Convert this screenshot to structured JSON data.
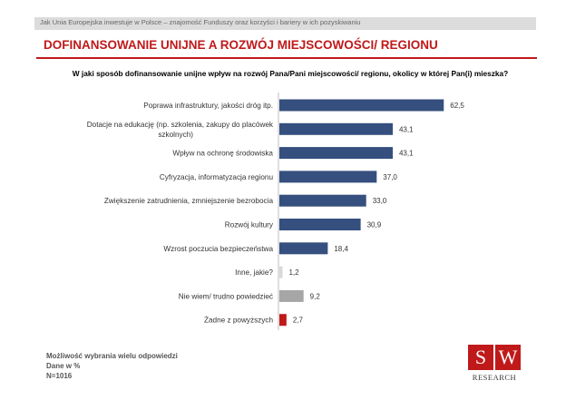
{
  "header": {
    "breadcrumb": "Jak Unia Europejska inwestuje w Polsce – znajomość Funduszy oraz korzyści i bariery w ich pozyskiwaniu",
    "title": "DOFINANSOWANIE UNIJNE A ROZWÓJ MIEJSCOWOŚCI/ REGIONU",
    "question": "W jaki sposób dofinansowanie unijne wpływ na rozwój Pana/Pani miejscowości/ regionu, okolicy w której Pan(i) mieszka?"
  },
  "chart_data": {
    "type": "bar",
    "orientation": "horizontal",
    "categories": [
      [
        "Poprawa infrastruktury, jakości dróg itp."
      ],
      [
        "Dotacje na edukację (np. szkolenia, zakupy do placówek",
        "szkolnych)"
      ],
      [
        "Wpływ na ochronę środowiska"
      ],
      [
        "Cyfryzacja, informatyzacja regionu"
      ],
      [
        "Zwiększenie zatrudnienia, zmniejszenie bezrobocia"
      ],
      [
        "Rozwój kultury"
      ],
      [
        "Wzrost poczucia bezpieczeństwa"
      ],
      [
        "Inne, jakie?"
      ],
      [
        "Nie wiem/ trudno powiedzieć"
      ],
      [
        "Żadne z powyższych"
      ]
    ],
    "values": [
      62.5,
      43.1,
      43.1,
      37.0,
      33.0,
      30.9,
      18.4,
      1.2,
      9.2,
      2.7
    ],
    "value_labels": [
      "62,5",
      "43,1",
      "43,1",
      "37,0",
      "33,0",
      "30,9",
      "18,4",
      "1,2",
      "9,2",
      "2,7"
    ],
    "bar_colors": [
      "#354f7e",
      "#354f7e",
      "#354f7e",
      "#354f7e",
      "#354f7e",
      "#354f7e",
      "#354f7e",
      "#d9d9d9",
      "#a6a6a6",
      "#c0191a"
    ],
    "xlim": [
      0,
      100
    ],
    "axis_color": "#bfbfbf"
  },
  "footer": {
    "note": "Możliwość wybrania wielu odpowiedzi",
    "unit": "Dane w %",
    "sample": "N=1016"
  },
  "logo": {
    "letter_left": "S",
    "letter_right": "W",
    "text": "RESEARCH"
  }
}
